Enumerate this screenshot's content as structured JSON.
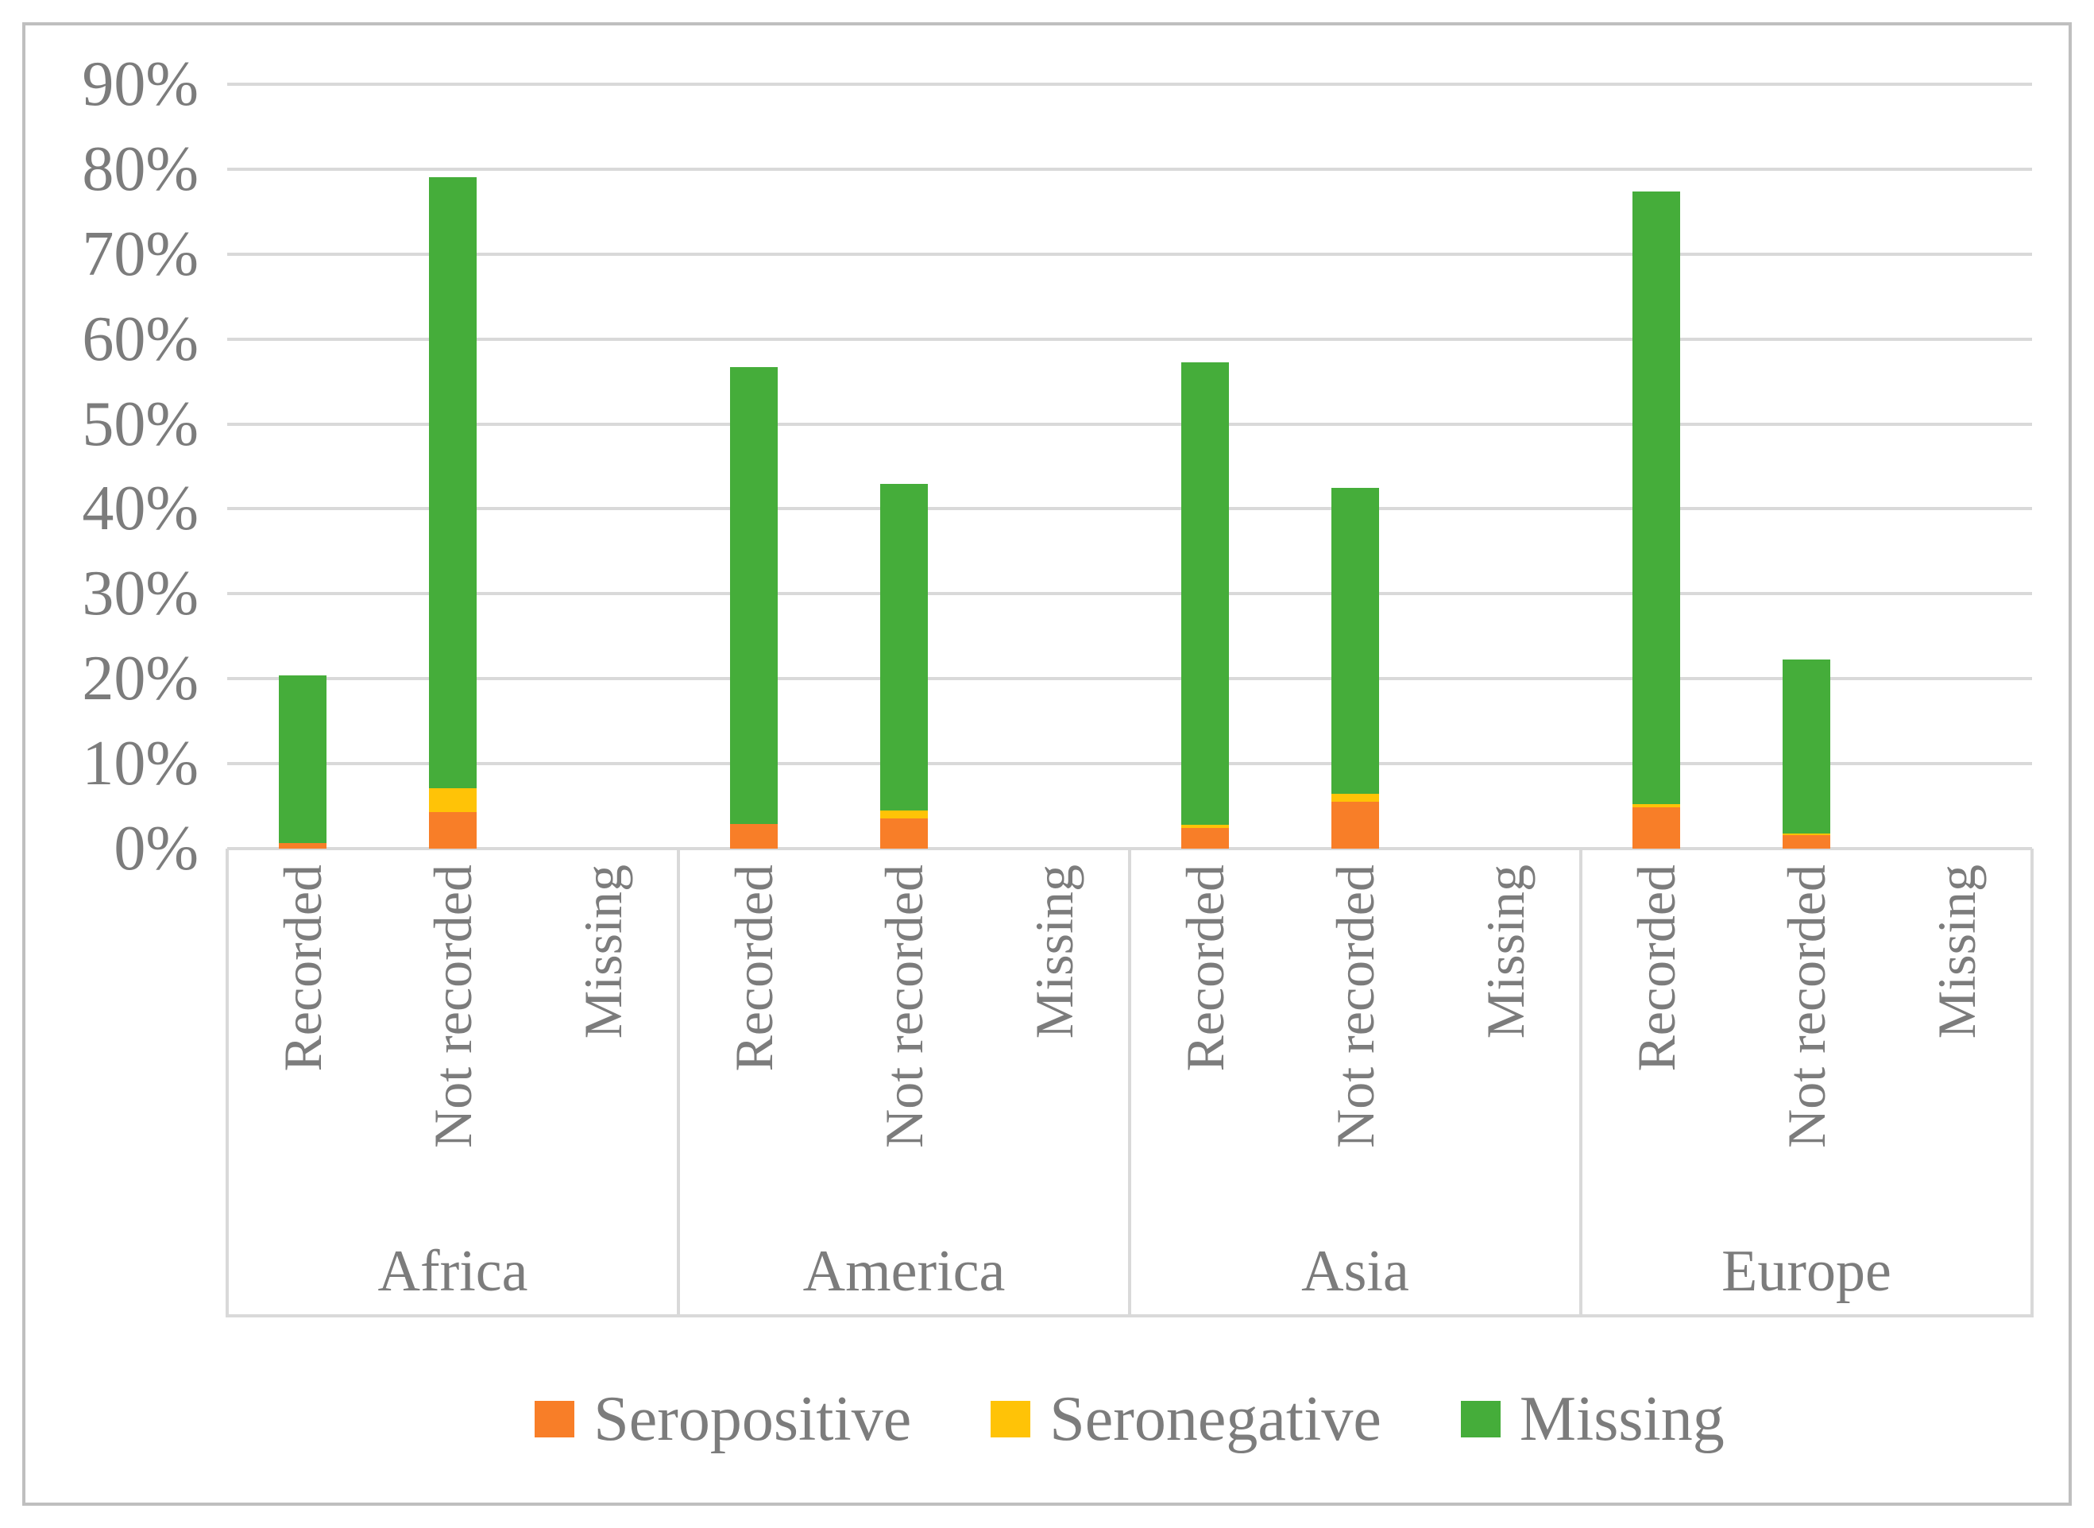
{
  "figure": {
    "background": "#FFFFFF",
    "border_color": "#BFBFBF",
    "text_color": "#7C7C7C"
  },
  "chart_data": {
    "type": "bar",
    "stacked": true,
    "orientation": "vertical",
    "title": "",
    "groups": [
      "Africa",
      "America",
      "Asia",
      "Europe"
    ],
    "categories_per_group": [
      "Recorded",
      "Not recorded",
      "Missing"
    ],
    "slot_labels": [
      "Recorded",
      "Not recorded",
      "Missing",
      "Recorded",
      "Not recorded",
      "Missing",
      "Recorded",
      "Not recorded",
      "Missing",
      "Recorded",
      "Not recorded",
      "Missing"
    ],
    "series": [
      {
        "name": "Seropositive",
        "color": "#F87E28",
        "values": [
          0.7,
          4.3,
          0,
          2.9,
          3.6,
          0,
          2.4,
          5.5,
          0,
          4.9,
          1.6,
          0
        ]
      },
      {
        "name": "Seronegative",
        "color": "#FFC307",
        "values": [
          0,
          2.8,
          0,
          0,
          0.9,
          0,
          0.4,
          1.0,
          0,
          0.3,
          0.2,
          0
        ]
      },
      {
        "name": "Missing",
        "color": "#45AD3A",
        "values": [
          19.7,
          72.0,
          0,
          53.8,
          38.4,
          0,
          54.5,
          36.0,
          0,
          72.2,
          20.5,
          0
        ]
      }
    ],
    "stack_totals": [
      20.4,
      79.1,
      0,
      56.7,
      42.9,
      0,
      57.3,
      42.5,
      0,
      77.4,
      22.3,
      0
    ],
    "y_axis": {
      "min": 0,
      "max": 90,
      "tick_step": 10,
      "unit": "%",
      "tick_labels": [
        "0%",
        "10%",
        "20%",
        "30%",
        "40%",
        "50%",
        "60%",
        "70%",
        "80%",
        "90%"
      ]
    },
    "grid": {
      "show": true,
      "color": "#D9D9D9"
    },
    "legend": {
      "position": "bottom",
      "entries": [
        {
          "label": "Seropositive",
          "color": "#F87E28"
        },
        {
          "label": "Seronegative",
          "color": "#FFC307"
        },
        {
          "label": "Missing",
          "color": "#45AD3A"
        }
      ]
    }
  }
}
